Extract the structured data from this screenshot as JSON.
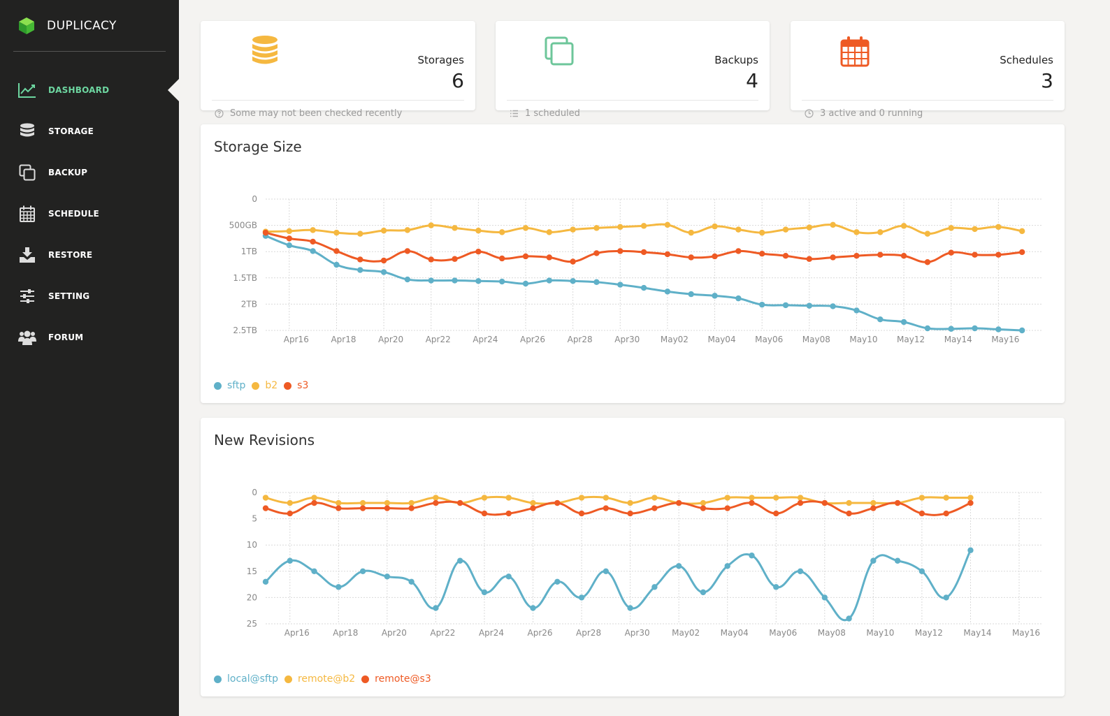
{
  "app": {
    "name": "DUPLICACY"
  },
  "colors": {
    "sidebar_bg": "#222221",
    "accent": "#6dd6a0",
    "sftp": "#5fb0c8",
    "b2": "#f5b840",
    "s3": "#ee5a24"
  },
  "nav": {
    "items": [
      {
        "label": "DASHBOARD",
        "icon": "line-chart-icon",
        "active": true
      },
      {
        "label": "STORAGE",
        "icon": "database-icon"
      },
      {
        "label": "BACKUP",
        "icon": "copy-icon"
      },
      {
        "label": "SCHEDULE",
        "icon": "calendar-icon"
      },
      {
        "label": "RESTORE",
        "icon": "download-icon"
      },
      {
        "label": "SETTING",
        "icon": "sliders-icon"
      },
      {
        "label": "FORUM",
        "icon": "users-icon"
      }
    ]
  },
  "stats": {
    "storages": {
      "title": "Storages",
      "value": "6",
      "footer": "Some may not been checked recently",
      "icon": "database-icon",
      "footer_icon": "question-circle-icon"
    },
    "backups": {
      "title": "Backups",
      "value": "4",
      "footer": "1 scheduled",
      "icon": "copy-icon",
      "footer_icon": "list-icon"
    },
    "schedules": {
      "title": "Schedules",
      "value": "3",
      "footer": "3 active and 0 running",
      "icon": "calendar-icon",
      "footer_icon": "clock-icon"
    }
  },
  "chart_data": [
    {
      "type": "line",
      "title": "Storage Size",
      "ylabel_unit": "GB",
      "ylim": [
        0,
        2500
      ],
      "yticks": [
        {
          "value": 0,
          "label": "0"
        },
        {
          "value": 500,
          "label": "500GB"
        },
        {
          "value": 1000,
          "label": "1TB"
        },
        {
          "value": 1500,
          "label": "1.5TB"
        },
        {
          "value": 2000,
          "label": "2TB"
        },
        {
          "value": 2500,
          "label": "2.5TB"
        }
      ],
      "xticks": [
        "Apr16",
        "Apr18",
        "Apr20",
        "Apr22",
        "Apr24",
        "Apr26",
        "Apr28",
        "Apr30",
        "May02",
        "May04",
        "May06",
        "May08",
        "May10",
        "May12",
        "May14",
        "May16"
      ],
      "x_start": "Apr15",
      "x_end": "May18",
      "grid": true,
      "legend_position": "bottom-left",
      "series": [
        {
          "name": "sftp",
          "color": "#5fb0c8",
          "values": [
            700,
            880,
            990,
            1250,
            1350,
            1390,
            1530,
            1550,
            1550,
            1560,
            1570,
            1610,
            1550,
            1560,
            1580,
            1630,
            1690,
            1760,
            1810,
            1840,
            1890,
            2010,
            2020,
            2030,
            2040,
            2120,
            2290,
            2340,
            2460,
            2470,
            2460,
            2480,
            2500
          ]
        },
        {
          "name": "b2",
          "color": "#f5b840",
          "values": [
            620,
            610,
            590,
            640,
            660,
            600,
            590,
            500,
            550,
            600,
            630,
            550,
            630,
            580,
            550,
            530,
            510,
            490,
            640,
            520,
            580,
            640,
            580,
            540,
            490,
            630,
            630,
            510,
            660,
            550,
            570,
            530,
            610
          ]
        },
        {
          "name": "s3",
          "color": "#ee5a24",
          "values": [
            640,
            750,
            810,
            990,
            1150,
            1170,
            990,
            1150,
            1140,
            1000,
            1130,
            1090,
            1110,
            1190,
            1030,
            990,
            1010,
            1050,
            1110,
            1090,
            990,
            1040,
            1080,
            1140,
            1110,
            1080,
            1060,
            1080,
            1200,
            1020,
            1060,
            1060,
            1010
          ]
        }
      ]
    },
    {
      "type": "line",
      "title": "New Revisions",
      "ylim": [
        0,
        25
      ],
      "yticks": [
        {
          "value": 0,
          "label": "0"
        },
        {
          "value": 5,
          "label": "5"
        },
        {
          "value": 10,
          "label": "10"
        },
        {
          "value": 15,
          "label": "15"
        },
        {
          "value": 20,
          "label": "20"
        },
        {
          "value": 25,
          "label": "25"
        }
      ],
      "xticks": [
        "Apr16",
        "Apr18",
        "Apr20",
        "Apr22",
        "Apr24",
        "Apr26",
        "Apr28",
        "Apr30",
        "May02",
        "May04",
        "May06",
        "May08",
        "May10",
        "May12",
        "May14",
        "May16"
      ],
      "x_start": "Apr15",
      "x_end": "May16",
      "grid": true,
      "legend_position": "bottom-left",
      "series": [
        {
          "name": "local@sftp",
          "color": "#5fb0c8",
          "values": [
            17,
            13,
            15,
            18,
            15,
            16,
            17,
            22,
            13,
            19,
            16,
            22,
            17,
            20,
            15,
            22,
            18,
            14,
            19,
            14,
            12,
            18,
            15,
            20,
            24,
            13,
            13,
            15,
            20,
            11
          ]
        },
        {
          "name": "remote@b2",
          "color": "#f5b840",
          "values": [
            1,
            2,
            1,
            2,
            2,
            2,
            2,
            1,
            2,
            1,
            1,
            2,
            2,
            1,
            1,
            2,
            1,
            2,
            2,
            1,
            1,
            1,
            1,
            2,
            2,
            2,
            2,
            1,
            1,
            1
          ]
        },
        {
          "name": "remote@s3",
          "color": "#ee5a24",
          "values": [
            3,
            4,
            2,
            3,
            3,
            3,
            3,
            2,
            2,
            4,
            4,
            3,
            2,
            4,
            3,
            4,
            3,
            2,
            3,
            3,
            2,
            4,
            2,
            2,
            4,
            3,
            2,
            4,
            4,
            2
          ]
        }
      ]
    }
  ]
}
